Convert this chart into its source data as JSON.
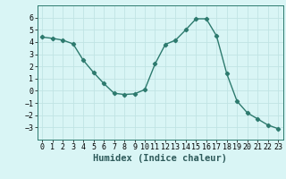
{
  "x": [
    0,
    1,
    2,
    3,
    4,
    5,
    6,
    7,
    8,
    9,
    10,
    11,
    12,
    13,
    14,
    15,
    16,
    17,
    18,
    19,
    20,
    21,
    22,
    23
  ],
  "y": [
    4.4,
    4.3,
    4.15,
    3.85,
    2.5,
    1.5,
    0.6,
    -0.2,
    -0.3,
    -0.25,
    0.1,
    2.2,
    3.8,
    4.15,
    5.0,
    5.9,
    5.9,
    4.5,
    1.4,
    -0.85,
    -1.8,
    -2.3,
    -2.8,
    -3.1
  ],
  "line_color": "#2d7a6e",
  "marker": "D",
  "marker_size": 2.2,
  "bg_color": "#d9f5f5",
  "grid_color": "#c0e4e4",
  "xlabel": "Humidex (Indice chaleur)",
  "ylim": [
    -4,
    7
  ],
  "xlim": [
    -0.5,
    23.5
  ],
  "yticks": [
    -3,
    -2,
    -1,
    0,
    1,
    2,
    3,
    4,
    5,
    6
  ],
  "xticks": [
    0,
    1,
    2,
    3,
    4,
    5,
    6,
    7,
    8,
    9,
    10,
    11,
    12,
    13,
    14,
    15,
    16,
    17,
    18,
    19,
    20,
    21,
    22,
    23
  ],
  "tick_fontsize": 6.0,
  "xlabel_fontsize": 7.5,
  "line_width": 1.0
}
